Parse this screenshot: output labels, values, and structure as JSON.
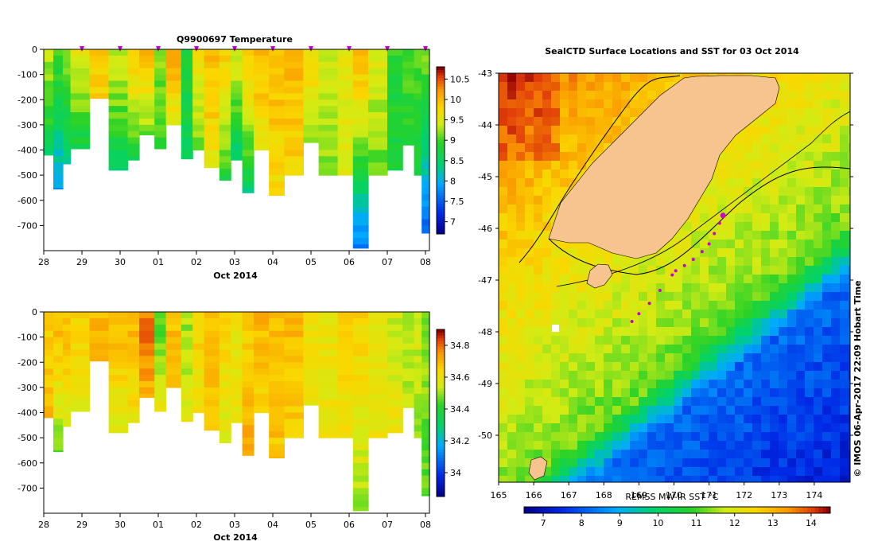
{
  "chart_data": [
    {
      "type": "heatmap",
      "title": "Q9900697  Temperature",
      "xlabel": "Oct 2014",
      "ylabel": "",
      "x_tick_labels": [
        "28",
        "29",
        "30",
        "01",
        "02",
        "03",
        "04",
        "05",
        "06",
        "07",
        "08"
      ],
      "xlim_days": [
        0,
        10
      ],
      "ylim": [
        0,
        -800
      ],
      "y_ticks": [
        0,
        -100,
        -200,
        -300,
        -400,
        -500,
        -600,
        -700
      ],
      "colorbar": {
        "min": 6.7,
        "max": 10.8,
        "ticks": [
          7,
          7.5,
          8,
          8.5,
          9,
          9.5,
          10,
          10.5
        ]
      },
      "profile_marker_days": [
        1,
        2,
        3,
        4,
        5,
        6,
        7,
        8,
        9,
        10
      ],
      "profiles": [
        {
          "t": 0.0,
          "depth": 420,
          "surface": 9.3,
          "bottom": 8.5
        },
        {
          "t": 0.25,
          "depth": 555,
          "surface": 9.0,
          "bottom": 7.8
        },
        {
          "t": 0.5,
          "depth": 455,
          "surface": 9.2,
          "bottom": 8.2
        },
        {
          "t": 0.7,
          "depth": 395,
          "surface": 9.5,
          "bottom": 8.6
        },
        {
          "t": 1.2,
          "depth": 195,
          "surface": 9.9,
          "bottom": 9.8
        },
        {
          "t": 1.7,
          "depth": 480,
          "surface": 9.4,
          "bottom": 8.5
        },
        {
          "t": 2.2,
          "depth": 440,
          "surface": 9.9,
          "bottom": 8.6
        },
        {
          "t": 2.5,
          "depth": 340,
          "surface": 10.0,
          "bottom": 9.0
        },
        {
          "t": 2.9,
          "depth": 395,
          "surface": 9.2,
          "bottom": 8.9
        },
        {
          "t": 3.2,
          "depth": 300,
          "surface": 10.1,
          "bottom": 9.4
        },
        {
          "t": 3.6,
          "depth": 435,
          "surface": 8.8,
          "bottom": 8.6
        },
        {
          "t": 3.9,
          "depth": 400,
          "surface": 9.6,
          "bottom": 9.1
        },
        {
          "t": 4.2,
          "depth": 470,
          "surface": 10.0,
          "bottom": 9.6
        },
        {
          "t": 4.6,
          "depth": 520,
          "surface": 9.8,
          "bottom": 8.8
        },
        {
          "t": 4.9,
          "depth": 440,
          "surface": 9.5,
          "bottom": 8.3
        },
        {
          "t": 5.2,
          "depth": 570,
          "surface": 9.9,
          "bottom": 8.4
        },
        {
          "t": 5.5,
          "depth": 400,
          "surface": 10.0,
          "bottom": 9.6
        },
        {
          "t": 5.9,
          "depth": 580,
          "surface": 10.0,
          "bottom": 9.7
        },
        {
          "t": 6.3,
          "depth": 500,
          "surface": 10.0,
          "bottom": 9.8
        },
        {
          "t": 6.8,
          "depth": 370,
          "surface": 9.8,
          "bottom": 9.3
        },
        {
          "t": 7.2,
          "depth": 500,
          "surface": 9.4,
          "bottom": 9.2
        },
        {
          "t": 7.7,
          "depth": 500,
          "surface": 9.6,
          "bottom": 9.4
        },
        {
          "t": 8.1,
          "depth": 790,
          "surface": 10.0,
          "bottom": 7.5
        },
        {
          "t": 8.5,
          "depth": 500,
          "surface": 9.5,
          "bottom": 9.0
        },
        {
          "t": 9.0,
          "depth": 480,
          "surface": 8.9,
          "bottom": 8.7
        },
        {
          "t": 9.4,
          "depth": 380,
          "surface": 9.0,
          "bottom": 8.9
        },
        {
          "t": 9.7,
          "depth": 500,
          "surface": 9.0,
          "bottom": 8.7
        },
        {
          "t": 9.9,
          "depth": 730,
          "surface": 9.1,
          "bottom": 7.5
        }
      ]
    },
    {
      "type": "heatmap",
      "title": "",
      "xlabel": "Oct 2014",
      "ylabel": "",
      "x_tick_labels": [
        "28",
        "29",
        "30",
        "01",
        "02",
        "03",
        "04",
        "05",
        "06",
        "07",
        "08"
      ],
      "xlim_days": [
        0,
        10
      ],
      "ylim": [
        0,
        -800
      ],
      "y_ticks": [
        0,
        -100,
        -200,
        -300,
        -400,
        -500,
        -600,
        -700
      ],
      "colorbar": {
        "min": 33.85,
        "max": 34.9,
        "ticks": [
          34,
          34.2,
          34.4,
          34.6,
          34.8
        ]
      },
      "profiles": [
        {
          "t": 0.0,
          "depth": 420,
          "surface": 34.65,
          "bottom": 34.7
        },
        {
          "t": 0.25,
          "depth": 555,
          "surface": 34.7,
          "bottom": 34.45
        },
        {
          "t": 0.5,
          "depth": 455,
          "surface": 34.7,
          "bottom": 34.55
        },
        {
          "t": 0.7,
          "depth": 395,
          "surface": 34.65,
          "bottom": 34.55
        },
        {
          "t": 1.2,
          "depth": 195,
          "surface": 34.7,
          "bottom": 34.7
        },
        {
          "t": 1.7,
          "depth": 480,
          "surface": 34.7,
          "bottom": 34.55
        },
        {
          "t": 2.2,
          "depth": 440,
          "surface": 34.7,
          "bottom": 34.6
        },
        {
          "t": 2.5,
          "depth": 340,
          "surface": 34.8,
          "bottom": 34.7
        },
        {
          "t": 2.9,
          "depth": 395,
          "surface": 34.45,
          "bottom": 34.6
        },
        {
          "t": 3.2,
          "depth": 300,
          "surface": 34.7,
          "bottom": 34.65
        },
        {
          "t": 3.6,
          "depth": 435,
          "surface": 34.5,
          "bottom": 34.6
        },
        {
          "t": 3.9,
          "depth": 400,
          "surface": 34.65,
          "bottom": 34.6
        },
        {
          "t": 4.2,
          "depth": 470,
          "surface": 34.7,
          "bottom": 34.65
        },
        {
          "t": 4.6,
          "depth": 520,
          "surface": 34.65,
          "bottom": 34.55
        },
        {
          "t": 4.9,
          "depth": 440,
          "surface": 34.6,
          "bottom": 34.6
        },
        {
          "t": 5.2,
          "depth": 570,
          "surface": 34.65,
          "bottom": 34.75
        },
        {
          "t": 5.5,
          "depth": 400,
          "surface": 34.7,
          "bottom": 34.65
        },
        {
          "t": 5.9,
          "depth": 580,
          "surface": 34.7,
          "bottom": 34.68
        },
        {
          "t": 6.3,
          "depth": 500,
          "surface": 34.7,
          "bottom": 34.65
        },
        {
          "t": 6.8,
          "depth": 370,
          "surface": 34.62,
          "bottom": 34.6
        },
        {
          "t": 7.2,
          "depth": 500,
          "surface": 34.6,
          "bottom": 34.6
        },
        {
          "t": 7.7,
          "depth": 500,
          "surface": 34.65,
          "bottom": 34.6
        },
        {
          "t": 8.1,
          "depth": 790,
          "surface": 34.65,
          "bottom": 34.5
        },
        {
          "t": 8.5,
          "depth": 500,
          "surface": 34.6,
          "bottom": 34.6
        },
        {
          "t": 9.0,
          "depth": 480,
          "surface": 34.55,
          "bottom": 34.6
        },
        {
          "t": 9.4,
          "depth": 380,
          "surface": 34.5,
          "bottom": 34.55
        },
        {
          "t": 9.7,
          "depth": 500,
          "surface": 34.55,
          "bottom": 34.5
        },
        {
          "t": 9.9,
          "depth": 730,
          "surface": 34.5,
          "bottom": 34.45
        }
      ]
    },
    {
      "type": "heatmap",
      "title": "SealCTD Surface Locations and SST for 03 Oct 2014",
      "xlabel": "REMSS MW-IR SST °C",
      "ylabel": "",
      "xlim": [
        165,
        175
      ],
      "ylim": [
        -51,
        -43
      ],
      "x_ticks": [
        165,
        166,
        167,
        168,
        169,
        170,
        171,
        172,
        173,
        174
      ],
      "y_ticks": [
        -43,
        -44,
        -45,
        -46,
        -47,
        -48,
        -49,
        -50
      ],
      "colorbar": {
        "min": 6.5,
        "max": 14.5,
        "ticks": [
          7,
          8,
          9,
          10,
          11,
          12,
          13,
          14
        ]
      },
      "land_color": "#f7c48f",
      "seal_track": [
        [
          171.4,
          -45.75
        ],
        [
          171.3,
          -45.9
        ],
        [
          171.15,
          -46.1
        ],
        [
          171.0,
          -46.3
        ],
        [
          170.8,
          -46.45
        ],
        [
          170.55,
          -46.6
        ],
        [
          170.3,
          -46.72
        ],
        [
          170.05,
          -46.82
        ],
        [
          169.95,
          -46.9
        ],
        [
          169.6,
          -47.2
        ],
        [
          169.3,
          -47.45
        ],
        [
          169.0,
          -47.65
        ],
        [
          168.8,
          -47.8
        ]
      ]
    }
  ],
  "credit": "© IMOS 06-Apr-2017 22:09 Hobart Time",
  "colors": {
    "marker": "#cc00cc",
    "land": "#f7c48f"
  }
}
